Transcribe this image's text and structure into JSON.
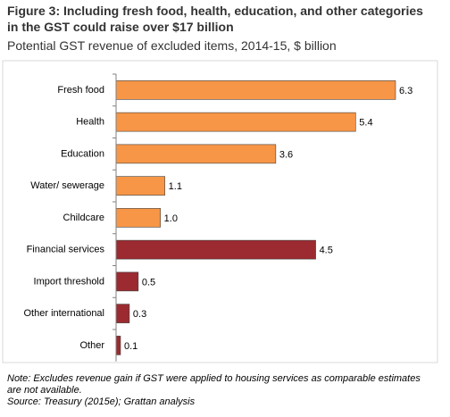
{
  "chart_data": {
    "type": "hbar",
    "title": "Figure 3: Including fresh food, health, education, and other categories in the GST could raise over $17 billion",
    "subtitle": "Potential GST revenue of excluded items, 2014-15, $ billion",
    "categories": [
      "Fresh food",
      "Health",
      "Education",
      "Water/ sewerage",
      "Childcare",
      "Financial services",
      "Import threshold",
      "Other international",
      "Other"
    ],
    "values": [
      6.3,
      5.4,
      3.6,
      1.1,
      1.0,
      4.5,
      0.5,
      0.3,
      0.1
    ],
    "value_labels": [
      "6.3",
      "5.4",
      "3.6",
      "1.1",
      "1.0",
      "4.5",
      "0.5",
      "0.3",
      "0.1"
    ],
    "colors": [
      "#f79646",
      "#f79646",
      "#f79646",
      "#f79646",
      "#f79646",
      "#9b2b30",
      "#9b2b30",
      "#9b2b30",
      "#9b2b30"
    ],
    "notes": [
      "Note: Excludes revenue gain if GST were applied to housing services as comparable estimates are not available.",
      "Source: Treasury (2015e); Grattan analysis"
    ]
  }
}
